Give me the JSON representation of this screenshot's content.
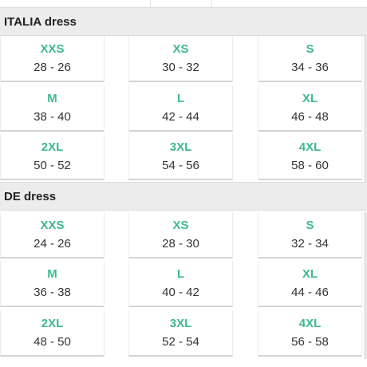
{
  "top_tab": {},
  "sections": [
    {
      "title": "ITALIA dress",
      "rows": [
        [
          {
            "size": "XXS",
            "range": "28 - 26"
          },
          {
            "size": "XS",
            "range": "30 - 32"
          },
          {
            "size": "S",
            "range": "34 - 36"
          }
        ],
        [
          {
            "size": "M",
            "range": "38 - 40"
          },
          {
            "size": "L",
            "range": "42 - 44"
          },
          {
            "size": "XL",
            "range": "46 - 48"
          }
        ],
        [
          {
            "size": "2XL",
            "range": "50 - 52"
          },
          {
            "size": "3XL",
            "range": "54 - 56"
          },
          {
            "size": "4XL",
            "range": "58 - 60"
          }
        ]
      ]
    },
    {
      "title": "DE dress",
      "rows": [
        [
          {
            "size": "XXS",
            "range": "24 - 26"
          },
          {
            "size": "XS",
            "range": "28 - 30"
          },
          {
            "size": "S",
            "range": "32 - 34"
          }
        ],
        [
          {
            "size": "M",
            "range": "36 - 38"
          },
          {
            "size": "L",
            "range": "40 - 42"
          },
          {
            "size": "XL",
            "range": "44 - 46"
          }
        ],
        [
          {
            "size": "2XL",
            "range": "48 - 50"
          },
          {
            "size": "3XL",
            "range": "52 - 54"
          },
          {
            "size": "4XL",
            "range": "56 - 58"
          }
        ]
      ]
    }
  ],
  "colors": {
    "size_label": "#3dba8c",
    "header_bg": "#ececec",
    "range_text": "#333333"
  }
}
